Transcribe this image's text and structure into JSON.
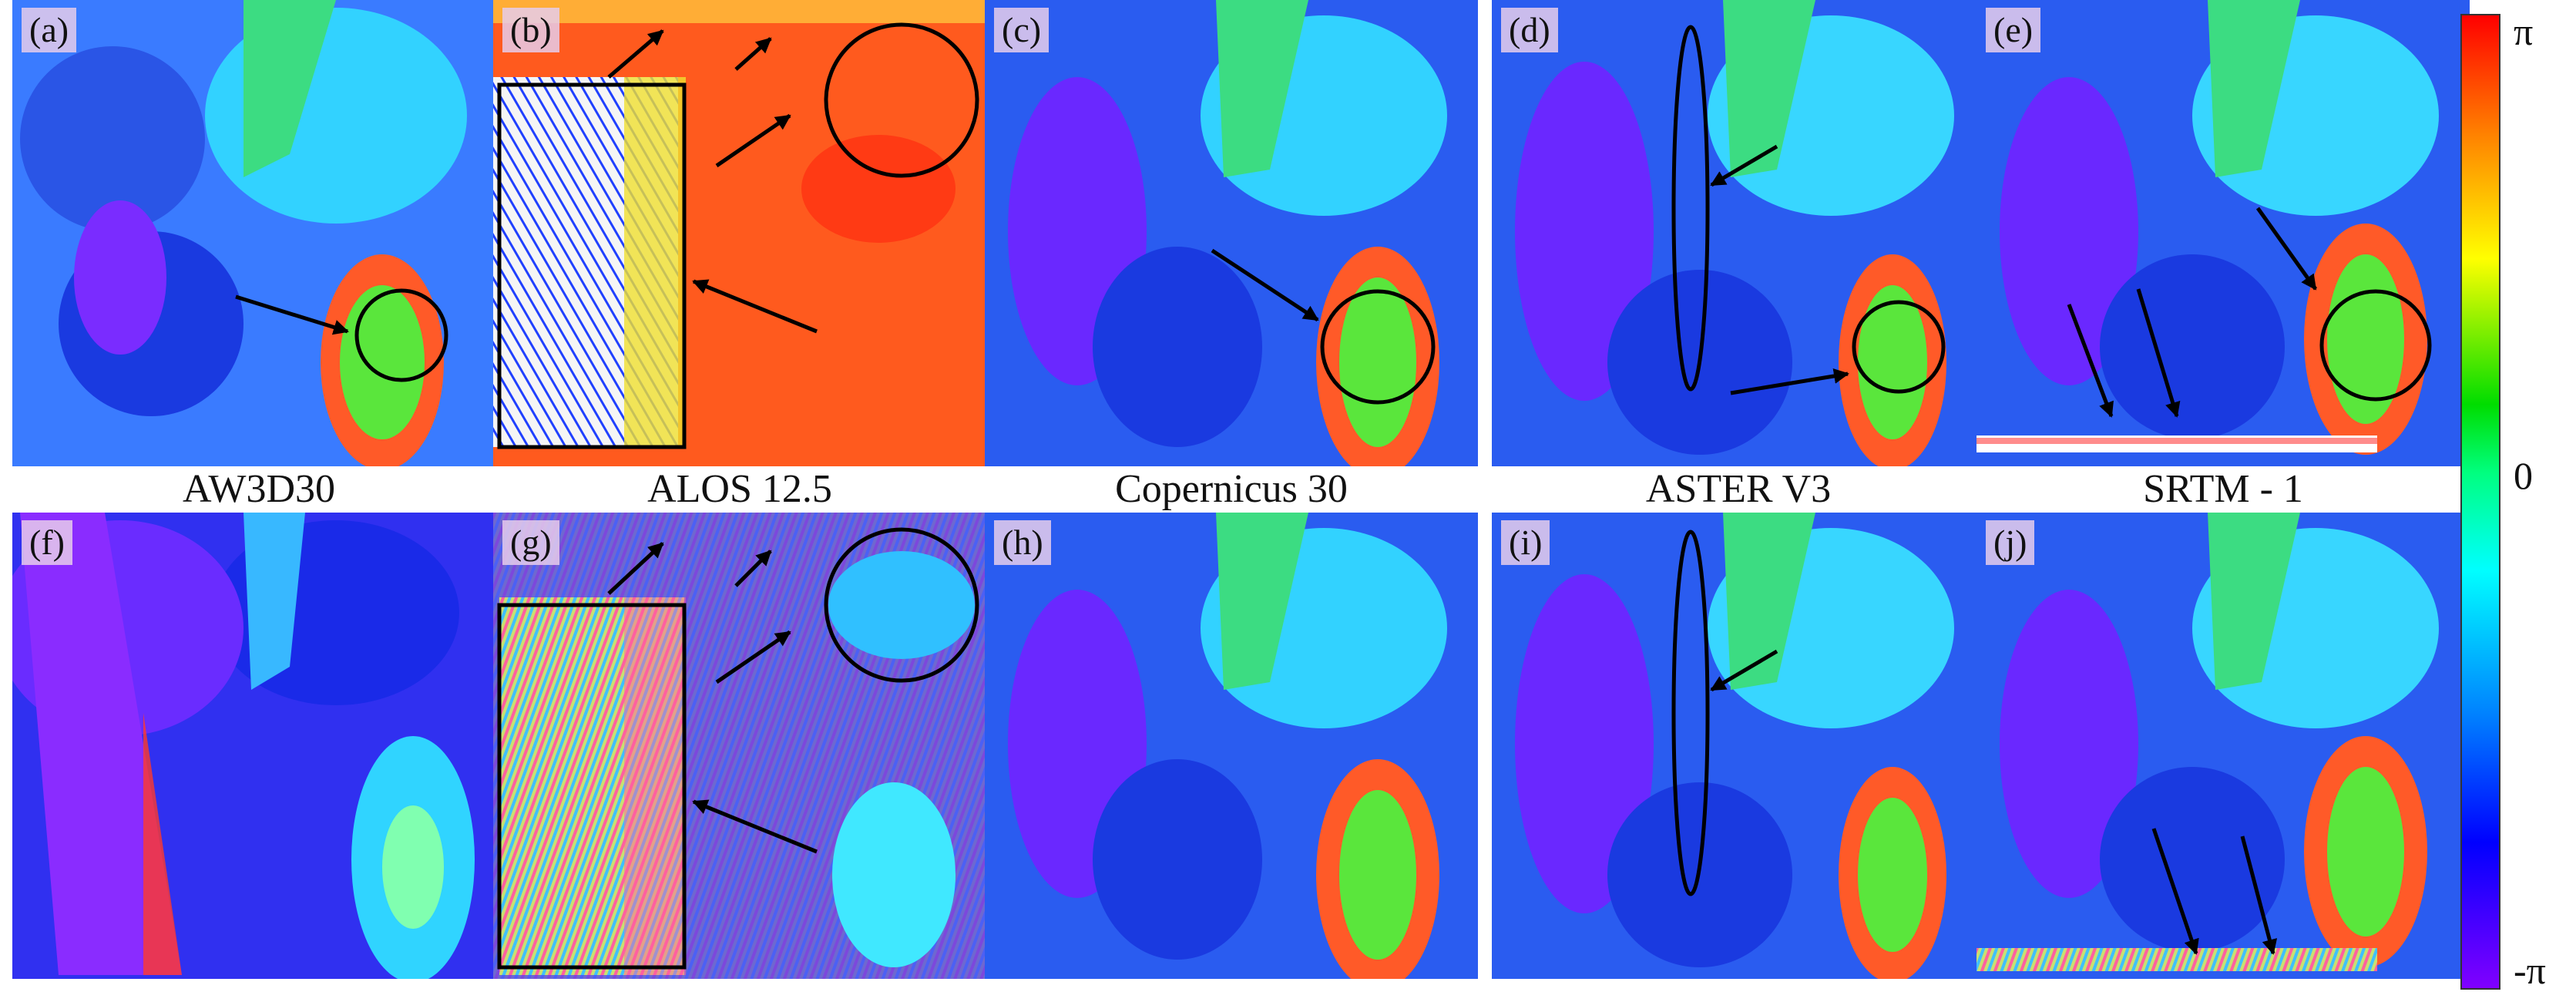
{
  "panels": [
    {
      "id": "a",
      "tag": "(a)",
      "caption": "AW3D30"
    },
    {
      "id": "b",
      "tag": "(b)",
      "caption": "ALOS 12.5"
    },
    {
      "id": "c",
      "tag": "(c)",
      "caption": "Copernicus 30"
    },
    {
      "id": "d",
      "tag": "(d)",
      "caption": "ASTER V3"
    },
    {
      "id": "e",
      "tag": "(e)",
      "caption": "SRTM - 1"
    },
    {
      "id": "f",
      "tag": "(f)"
    },
    {
      "id": "g",
      "tag": "(g)"
    },
    {
      "id": "h",
      "tag": "(h)"
    },
    {
      "id": "i",
      "tag": "(i)"
    },
    {
      "id": "j",
      "tag": "(j)"
    }
  ],
  "colorbar": {
    "top_label": "π",
    "mid_label": "0",
    "bottom_label": "-π",
    "colors": [
      "#ff0000",
      "#ffff00",
      "#00dd00",
      "#00ffff",
      "#0000ff",
      "#8000ff"
    ]
  }
}
